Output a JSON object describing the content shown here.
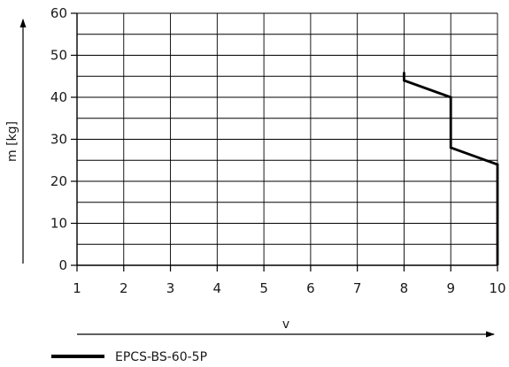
{
  "chart_data": {
    "type": "line",
    "xlabel": "v",
    "ylabel": "m [kg]",
    "xlim": [
      1,
      10
    ],
    "ylim": [
      0,
      60
    ],
    "x_ticks": [
      1,
      2,
      3,
      4,
      5,
      6,
      7,
      8,
      9,
      10
    ],
    "y_ticks": [
      0,
      10,
      20,
      30,
      40,
      50,
      60
    ],
    "grid": true,
    "x_minor_grid_step": 1,
    "y_minor_grid_step": 5,
    "legend_position": "bottom-left",
    "series": [
      {
        "name": "EPCS-BS-60-5P",
        "color": "#000000",
        "points": [
          [
            8,
            46
          ],
          [
            8,
            44
          ],
          [
            9,
            40
          ],
          [
            9,
            28
          ],
          [
            10,
            24
          ],
          [
            10,
            0
          ]
        ]
      }
    ]
  }
}
